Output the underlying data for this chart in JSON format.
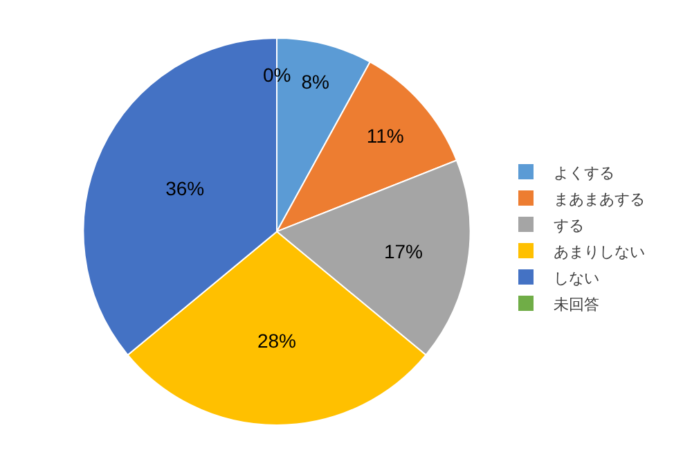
{
  "chart_data": {
    "type": "pie",
    "categories": [
      "よくする",
      "まあまあする",
      "する",
      "あまりしない",
      "しない",
      "未回答"
    ],
    "values": [
      8,
      11,
      17,
      28,
      36,
      0
    ],
    "value_labels": [
      "8%",
      "11%",
      "17%",
      "28%",
      "36%",
      "0%"
    ],
    "colors": [
      "#5b9bd5",
      "#ed7d31",
      "#a5a5a5",
      "#ffc000",
      "#4472c4",
      "#70ad47"
    ],
    "legend": "right"
  }
}
